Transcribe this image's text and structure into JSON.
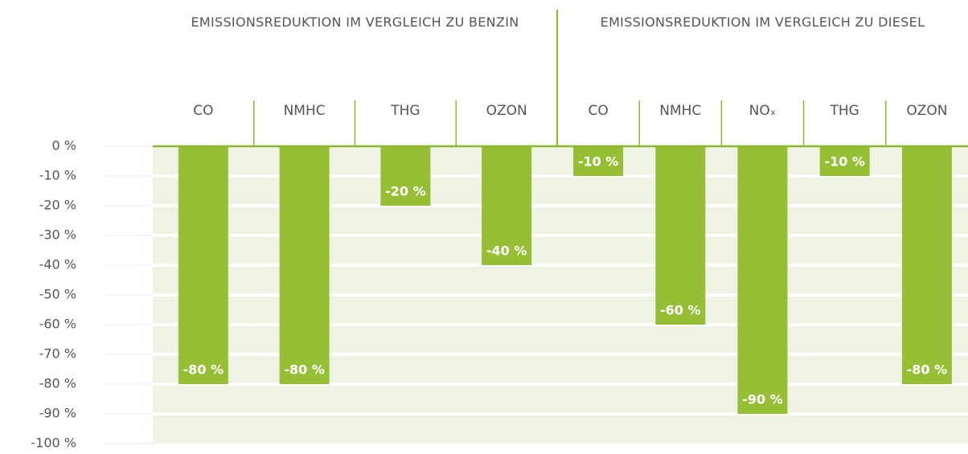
{
  "chart_data": {
    "type": "bar",
    "color": "#97bf35",
    "ylim": [
      -100,
      0
    ],
    "yticks": [
      {
        "value": 0,
        "label": "0 %"
      },
      {
        "value": -10,
        "label": "-10 %"
      },
      {
        "value": -20,
        "label": "-20 %"
      },
      {
        "value": -30,
        "label": "-30 %"
      },
      {
        "value": -40,
        "label": "-40 %"
      },
      {
        "value": -50,
        "label": "-50 %"
      },
      {
        "value": -60,
        "label": "-60 %"
      },
      {
        "value": -70,
        "label": "-70 %"
      },
      {
        "value": -80,
        "label": "-80 %"
      },
      {
        "value": -90,
        "label": "-90 %"
      },
      {
        "value": -100,
        "label": "-100 %"
      }
    ],
    "grid": true,
    "groups": [
      {
        "title": "EMISSIONSREDUKTION IM VERGLEICH ZU BENZIN",
        "categories": [
          "CO",
          "NMHC",
          "THG",
          "OZON"
        ],
        "values": [
          -80,
          -80,
          -20,
          -40
        ],
        "value_labels": [
          "-80 %",
          "-80 %",
          "-20 %",
          "-40 %"
        ]
      },
      {
        "title": "EMISSIONSREDUKTION IM VERGLEICH ZU DIESEL",
        "categories": [
          "CO",
          "NMHC",
          "NOₓ",
          "THG",
          "OZON"
        ],
        "values": [
          -10,
          -60,
          -90,
          -10,
          -80
        ],
        "value_labels": [
          "-10 %",
          "-60 %",
          "-90 %",
          "-10 %",
          "-80 %"
        ]
      }
    ]
  }
}
